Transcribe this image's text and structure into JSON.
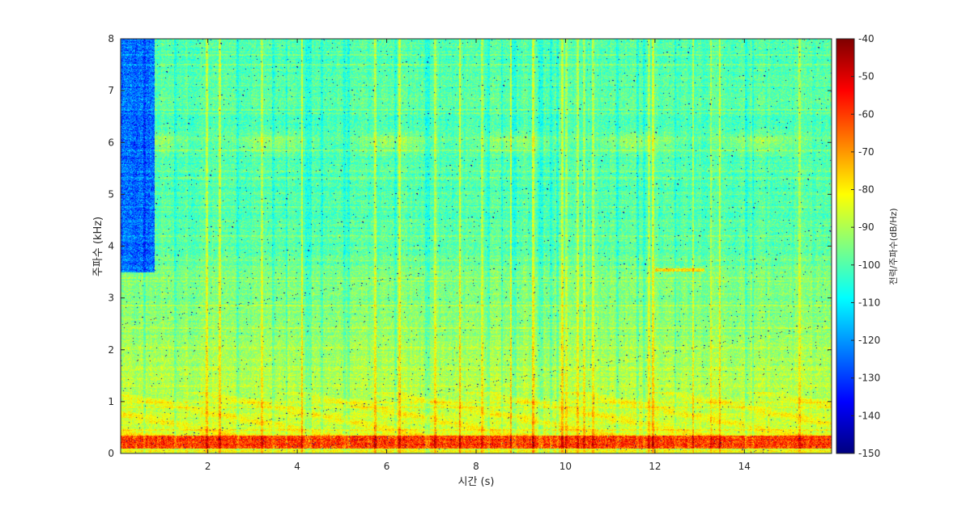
{
  "chart_data": {
    "type": "heatmap",
    "title": "",
    "xlabel": "시간 (s)",
    "ylabel": "주파수 (kHz)",
    "colorbar_label": "전력/주파수(dB/Hz)",
    "colormap": "jet",
    "xlim": [
      0.05,
      15.95
    ],
    "ylim": [
      0,
      8
    ],
    "clim": [
      -150,
      -40
    ],
    "x_ticks": [
      2,
      4,
      6,
      8,
      10,
      12,
      14
    ],
    "y_ticks": [
      0,
      1,
      2,
      3,
      4,
      5,
      6,
      7,
      8
    ],
    "colorbar_ticks": [
      -40,
      -50,
      -60,
      -70,
      -80,
      -90,
      -100,
      -110,
      -120,
      -130,
      -140,
      -150
    ],
    "grid": false,
    "features": {
      "low_band_khz": [
        0.1,
        0.35
      ],
      "low_band_db": -60,
      "bright_band_khz": 6.0,
      "quiet_region_s": [
        0.05,
        0.8
      ],
      "quiet_region_db": -125,
      "tone_khz": 3.55,
      "tone_time_s": [
        12.0,
        13.1
      ],
      "background_db_low": -85,
      "background_db_high": -100
    }
  }
}
